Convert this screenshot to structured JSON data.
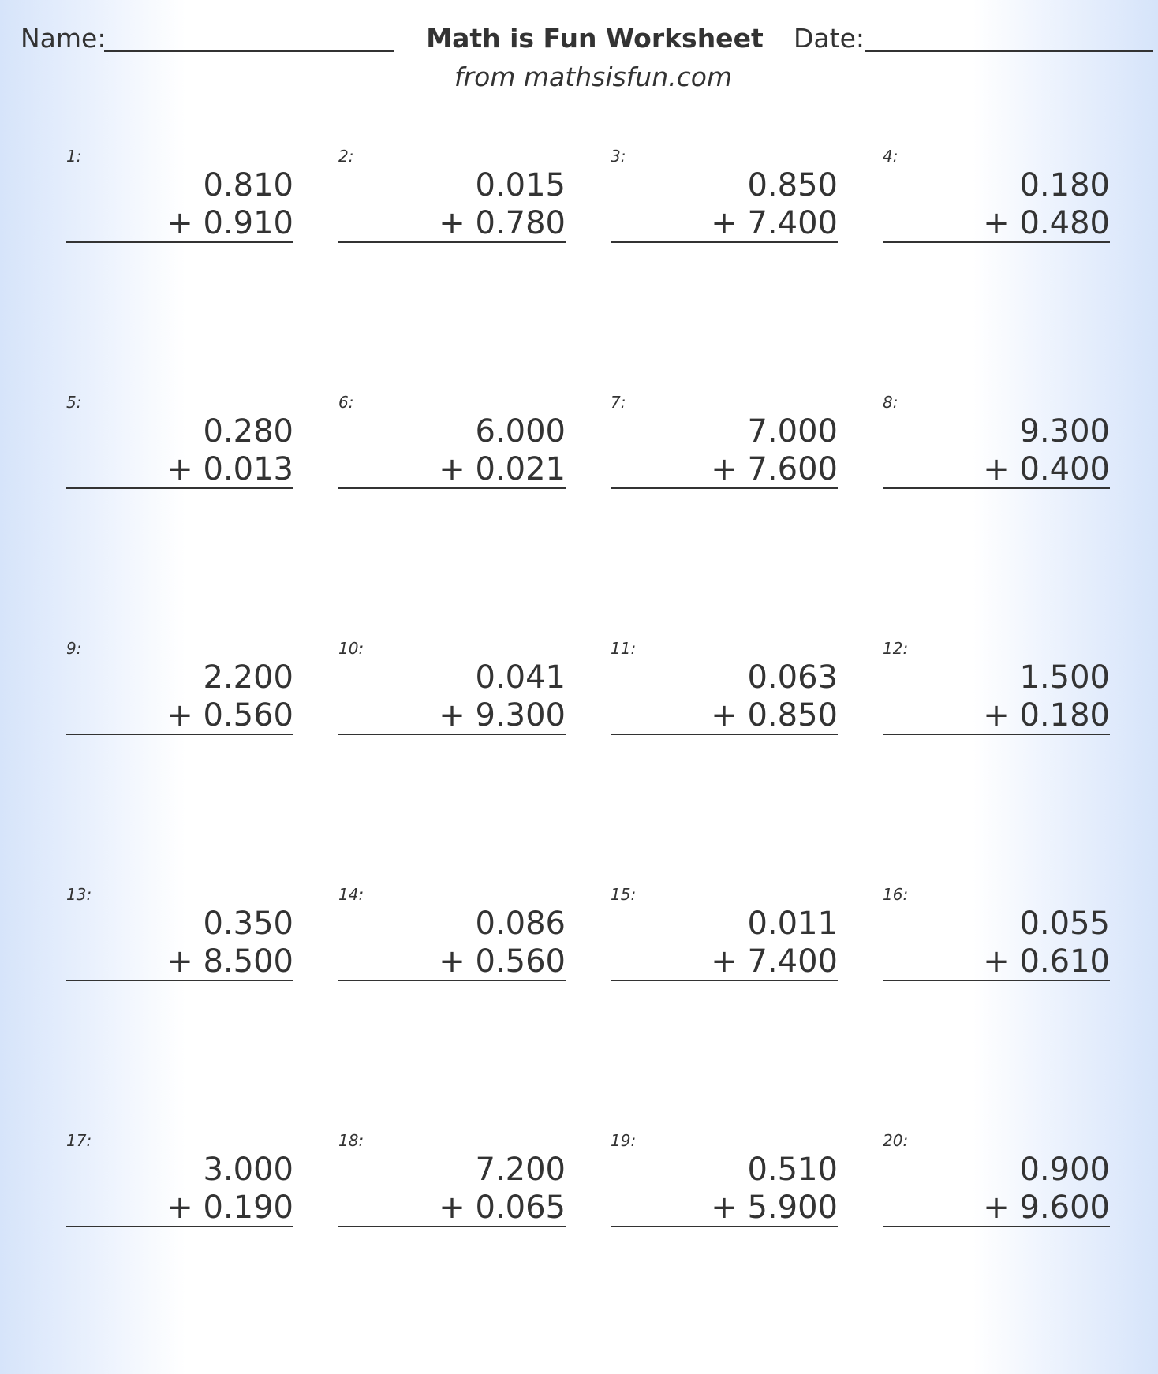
{
  "header": {
    "name_label": "Name:",
    "title": "Math is Fun Worksheet",
    "date_label": "Date:",
    "subtitle": "from mathsisfun.com"
  },
  "problems": [
    {
      "number": "1:",
      "top": "0.810",
      "bottom": "+ 0.910"
    },
    {
      "number": "2:",
      "top": "0.015",
      "bottom": "+ 0.780"
    },
    {
      "number": "3:",
      "top": "0.850",
      "bottom": "+ 7.400"
    },
    {
      "number": "4:",
      "top": "0.180",
      "bottom": "+ 0.480"
    },
    {
      "number": "5:",
      "top": "0.280",
      "bottom": "+ 0.013"
    },
    {
      "number": "6:",
      "top": "6.000",
      "bottom": "+ 0.021"
    },
    {
      "number": "7:",
      "top": "7.000",
      "bottom": "+ 7.600"
    },
    {
      "number": "8:",
      "top": "9.300",
      "bottom": "+ 0.400"
    },
    {
      "number": "9:",
      "top": "2.200",
      "bottom": "+ 0.560"
    },
    {
      "number": "10:",
      "top": "0.041",
      "bottom": "+ 9.300"
    },
    {
      "number": "11:",
      "top": "0.063",
      "bottom": "+ 0.850"
    },
    {
      "number": "12:",
      "top": "1.500",
      "bottom": "+ 0.180"
    },
    {
      "number": "13:",
      "top": "0.350",
      "bottom": "+ 8.500"
    },
    {
      "number": "14:",
      "top": "0.086",
      "bottom": "+ 0.560"
    },
    {
      "number": "15:",
      "top": "0.011",
      "bottom": "+ 7.400"
    },
    {
      "number": "16:",
      "top": "0.055",
      "bottom": "+ 0.610"
    },
    {
      "number": "17:",
      "top": "3.000",
      "bottom": "+ 0.190"
    },
    {
      "number": "18:",
      "top": "7.200",
      "bottom": "+ 0.065"
    },
    {
      "number": "19:",
      "top": "0.510",
      "bottom": "+ 5.900"
    },
    {
      "number": "20:",
      "top": "0.900",
      "bottom": "+ 9.600"
    }
  ]
}
